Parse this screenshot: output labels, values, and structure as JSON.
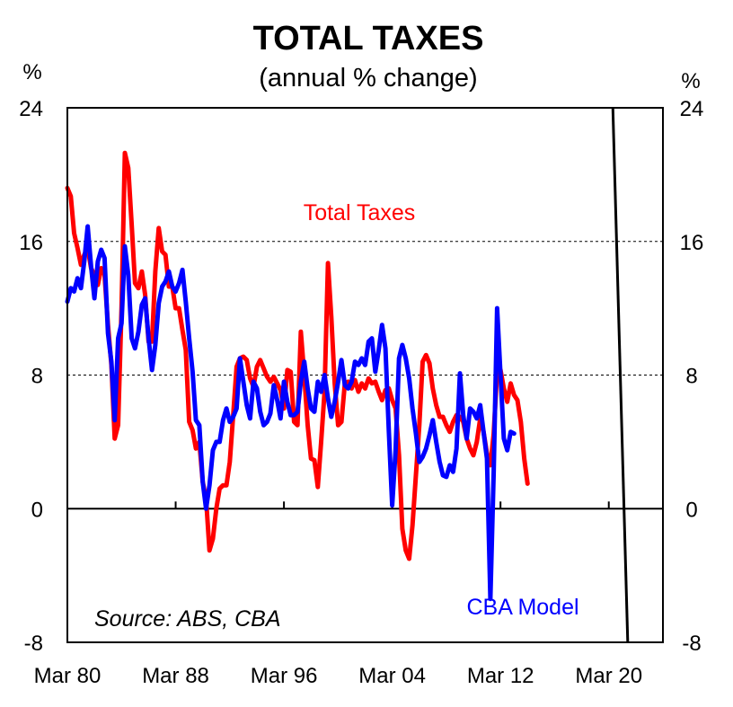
{
  "chart_data": {
    "type": "line",
    "title": "TOTAL TAXES",
    "subtitle": "(annual % change)",
    "y_unit_left": "%",
    "y_unit_right": "%",
    "ylim": [
      -8,
      24
    ],
    "yticks": [
      24,
      16,
      8,
      0,
      -8
    ],
    "xlim": [
      1980.0,
      2024.0
    ],
    "xticks": [
      {
        "label": "Mar 80",
        "x": 1980.0
      },
      {
        "label": "Mar 88",
        "x": 1988.0
      },
      {
        "label": "Mar 96",
        "x": 1996.0
      },
      {
        "label": "Mar 04",
        "x": 2004.0
      },
      {
        "label": "Mar 12",
        "x": 2012.0
      },
      {
        "label": "Mar 20",
        "x": 2020.0
      }
    ],
    "gridlines": [
      16,
      8
    ],
    "annotations": {
      "total_taxes_label": "Total Taxes",
      "cba_label": "CBA Model",
      "source": "Source: ABS, CBA"
    },
    "colors": {
      "total_taxes": "#ff0000",
      "cba_model": "#0000ff",
      "vertical_line": "#000000"
    },
    "vertical_line": {
      "x": [
        2020.3,
        2021.4
      ],
      "y": [
        24,
        -8
      ]
    },
    "series": [
      {
        "name": "Total Taxes",
        "color": "#ff0000",
        "points": [
          [
            1980.0,
            19.2
          ],
          [
            1980.25,
            18.7
          ],
          [
            1980.5,
            16.5
          ],
          [
            1980.75,
            15.6
          ],
          [
            1981.0,
            14.6
          ],
          [
            1981.25,
            15.2
          ],
          [
            1981.5,
            15.6
          ],
          [
            1981.75,
            14.4
          ],
          [
            1982.0,
            14.0
          ],
          [
            1982.25,
            13.4
          ],
          [
            1982.5,
            14.4
          ],
          [
            1982.75,
            14.0
          ],
          [
            1983.0,
            11.0
          ],
          [
            1983.25,
            8.6
          ],
          [
            1983.5,
            4.2
          ],
          [
            1983.75,
            5.0
          ],
          [
            1984.0,
            12.0
          ],
          [
            1984.25,
            21.3
          ],
          [
            1984.5,
            20.4
          ],
          [
            1984.75,
            17.0
          ],
          [
            1985.0,
            13.5
          ],
          [
            1985.25,
            13.2
          ],
          [
            1985.5,
            14.2
          ],
          [
            1985.75,
            12.8
          ],
          [
            1986.0,
            10.0
          ],
          [
            1986.25,
            10.0
          ],
          [
            1986.5,
            14.2
          ],
          [
            1986.75,
            16.8
          ],
          [
            1987.0,
            15.4
          ],
          [
            1987.25,
            15.2
          ],
          [
            1987.5,
            13.3
          ],
          [
            1987.75,
            13.3
          ],
          [
            1988.0,
            12.0
          ],
          [
            1988.25,
            12.0
          ],
          [
            1988.5,
            10.7
          ],
          [
            1988.75,
            9.5
          ],
          [
            1989.0,
            5.2
          ],
          [
            1989.25,
            4.7
          ],
          [
            1989.5,
            3.6
          ],
          [
            1989.75,
            4.0
          ],
          [
            1990.0,
            1.6
          ],
          [
            1990.25,
            0.6
          ],
          [
            1990.5,
            -2.5
          ],
          [
            1990.75,
            -1.8
          ],
          [
            1991.0,
            0.0
          ],
          [
            1991.25,
            1.2
          ],
          [
            1991.5,
            1.4
          ],
          [
            1991.75,
            1.4
          ],
          [
            1992.0,
            2.8
          ],
          [
            1992.25,
            5.6
          ],
          [
            1992.5,
            8.5
          ],
          [
            1992.75,
            9.0
          ],
          [
            1993.0,
            9.1
          ],
          [
            1993.25,
            8.9
          ],
          [
            1993.5,
            7.8
          ],
          [
            1993.75,
            7.3
          ],
          [
            1994.0,
            8.5
          ],
          [
            1994.25,
            8.9
          ],
          [
            1994.5,
            8.4
          ],
          [
            1994.75,
            7.9
          ],
          [
            1995.0,
            7.6
          ],
          [
            1995.25,
            7.9
          ],
          [
            1995.5,
            7.5
          ],
          [
            1995.75,
            7.1
          ],
          [
            1996.0,
            6.0
          ],
          [
            1996.25,
            8.3
          ],
          [
            1996.5,
            8.2
          ],
          [
            1996.75,
            5.2
          ],
          [
            1997.0,
            5.0
          ],
          [
            1997.25,
            10.6
          ],
          [
            1997.5,
            8.0
          ],
          [
            1997.75,
            5.0
          ],
          [
            1998.0,
            3.0
          ],
          [
            1998.25,
            2.9
          ],
          [
            1998.5,
            1.3
          ],
          [
            1998.75,
            4.0
          ],
          [
            1999.0,
            7.0
          ],
          [
            1999.25,
            14.7
          ],
          [
            1999.5,
            11.5
          ],
          [
            1999.75,
            7.5
          ],
          [
            2000.0,
            5.0
          ],
          [
            2000.25,
            5.2
          ],
          [
            2000.5,
            7.5
          ],
          [
            2000.75,
            7.6
          ],
          [
            2001.0,
            7.2
          ],
          [
            2001.25,
            7.7
          ],
          [
            2001.5,
            7.0
          ],
          [
            2001.75,
            7.5
          ],
          [
            2002.0,
            7.2
          ],
          [
            2002.25,
            7.8
          ],
          [
            2002.5,
            7.5
          ],
          [
            2002.75,
            7.6
          ],
          [
            2003.0,
            7.0
          ],
          [
            2003.25,
            6.5
          ],
          [
            2003.5,
            7.1
          ],
          [
            2003.75,
            7.2
          ],
          [
            2004.0,
            6.5
          ],
          [
            2004.25,
            6.0
          ],
          [
            2004.5,
            3.2
          ],
          [
            2004.75,
            -1.2
          ],
          [
            2005.0,
            -2.5
          ],
          [
            2005.25,
            -3.0
          ],
          [
            2005.5,
            -1.0
          ],
          [
            2005.75,
            2.0
          ],
          [
            2006.0,
            5.0
          ],
          [
            2006.25,
            8.8
          ],
          [
            2006.5,
            9.2
          ],
          [
            2006.75,
            8.7
          ],
          [
            2007.0,
            7.2
          ],
          [
            2007.25,
            6.2
          ],
          [
            2007.5,
            5.5
          ],
          [
            2007.75,
            5.5
          ],
          [
            2008.0,
            5.0
          ],
          [
            2008.25,
            4.6
          ],
          [
            2008.5,
            5.2
          ],
          [
            2008.75,
            5.6
          ],
          [
            2009.0,
            5.5
          ],
          [
            2009.25,
            5.2
          ],
          [
            2009.5,
            4.2
          ],
          [
            2009.75,
            3.6
          ],
          [
            2010.0,
            3.2
          ],
          [
            2010.25,
            4.0
          ],
          [
            2010.5,
            5.4
          ],
          [
            2010.75,
            4.6
          ],
          [
            2011.0,
            3.3
          ],
          [
            2011.25,
            2.6
          ],
          [
            2011.5,
            4.5
          ],
          [
            2011.75,
            8.2
          ],
          [
            2012.0,
            8.3
          ],
          [
            2012.25,
            7.2
          ],
          [
            2012.5,
            6.4
          ],
          [
            2012.75,
            7.5
          ],
          [
            2013.0,
            6.8
          ],
          [
            2013.25,
            6.5
          ],
          [
            2013.5,
            5.2
          ],
          [
            2013.75,
            3.0
          ],
          [
            2014.0,
            1.5
          ]
        ]
      },
      {
        "name": "CBA Model",
        "color": "#0000ff",
        "points": [
          [
            1980.0,
            12.4
          ],
          [
            1980.25,
            13.2
          ],
          [
            1980.5,
            13.0
          ],
          [
            1980.75,
            13.8
          ],
          [
            1981.0,
            13.2
          ],
          [
            1981.25,
            14.8
          ],
          [
            1981.5,
            16.9
          ],
          [
            1981.75,
            14.5
          ],
          [
            1982.0,
            12.6
          ],
          [
            1982.25,
            14.8
          ],
          [
            1982.5,
            15.5
          ],
          [
            1982.75,
            15.0
          ],
          [
            1983.0,
            10.5
          ],
          [
            1983.25,
            8.8
          ],
          [
            1983.5,
            5.3
          ],
          [
            1983.75,
            10.2
          ],
          [
            1984.0,
            11.1
          ],
          [
            1984.25,
            15.7
          ],
          [
            1984.5,
            14.0
          ],
          [
            1984.75,
            10.2
          ],
          [
            1985.0,
            9.6
          ],
          [
            1985.25,
            10.6
          ],
          [
            1985.5,
            12.2
          ],
          [
            1985.75,
            12.6
          ],
          [
            1986.0,
            10.2
          ],
          [
            1986.25,
            8.3
          ],
          [
            1986.5,
            9.8
          ],
          [
            1986.75,
            12.3
          ],
          [
            1987.0,
            13.3
          ],
          [
            1987.25,
            13.6
          ],
          [
            1987.5,
            14.2
          ],
          [
            1987.75,
            13.3
          ],
          [
            1988.0,
            13.0
          ],
          [
            1988.25,
            13.5
          ],
          [
            1988.5,
            14.3
          ],
          [
            1988.75,
            12.4
          ],
          [
            1989.0,
            10.2
          ],
          [
            1989.25,
            8.2
          ],
          [
            1989.5,
            5.3
          ],
          [
            1989.75,
            5.0
          ],
          [
            1990.0,
            1.6
          ],
          [
            1990.25,
            0.0
          ],
          [
            1990.5,
            1.4
          ],
          [
            1990.75,
            3.5
          ],
          [
            1991.0,
            4.0
          ],
          [
            1991.25,
            4.0
          ],
          [
            1991.5,
            5.3
          ],
          [
            1991.75,
            6.0
          ],
          [
            1992.0,
            5.2
          ],
          [
            1992.25,
            5.5
          ],
          [
            1992.5,
            6.0
          ],
          [
            1992.75,
            9.0
          ],
          [
            1993.0,
            7.6
          ],
          [
            1993.25,
            6.2
          ],
          [
            1993.5,
            5.4
          ],
          [
            1993.75,
            7.6
          ],
          [
            1994.0,
            7.2
          ],
          [
            1994.25,
            5.8
          ],
          [
            1994.5,
            5.0
          ],
          [
            1994.75,
            5.2
          ],
          [
            1995.0,
            5.7
          ],
          [
            1995.25,
            7.4
          ],
          [
            1995.5,
            6.5
          ],
          [
            1995.75,
            5.4
          ],
          [
            1996.0,
            7.6
          ],
          [
            1996.25,
            6.4
          ],
          [
            1996.5,
            5.6
          ],
          [
            1996.75,
            5.6
          ],
          [
            1997.0,
            5.8
          ],
          [
            1997.25,
            7.6
          ],
          [
            1997.5,
            8.8
          ],
          [
            1997.75,
            7.2
          ],
          [
            1998.0,
            6.0
          ],
          [
            1998.25,
            5.8
          ],
          [
            1998.5,
            7.6
          ],
          [
            1998.75,
            7.0
          ],
          [
            1999.0,
            8.0
          ],
          [
            1999.25,
            6.6
          ],
          [
            1999.5,
            5.5
          ],
          [
            1999.75,
            6.4
          ],
          [
            2000.0,
            7.6
          ],
          [
            2000.25,
            8.9
          ],
          [
            2000.5,
            7.4
          ],
          [
            2000.75,
            7.2
          ],
          [
            2001.0,
            7.6
          ],
          [
            2001.25,
            8.8
          ],
          [
            2001.5,
            8.6
          ],
          [
            2001.75,
            9.0
          ],
          [
            2002.0,
            8.6
          ],
          [
            2002.25,
            10.0
          ],
          [
            2002.5,
            10.2
          ],
          [
            2002.75,
            8.2
          ],
          [
            2003.0,
            9.5
          ],
          [
            2003.25,
            11.0
          ],
          [
            2003.5,
            9.6
          ],
          [
            2003.75,
            4.6
          ],
          [
            2004.0,
            0.2
          ],
          [
            2004.25,
            3.5
          ],
          [
            2004.5,
            9.0
          ],
          [
            2004.75,
            9.8
          ],
          [
            2005.0,
            9.0
          ],
          [
            2005.25,
            7.8
          ],
          [
            2005.5,
            6.0
          ],
          [
            2005.75,
            4.5
          ],
          [
            2006.0,
            2.8
          ],
          [
            2006.25,
            3.1
          ],
          [
            2006.5,
            3.6
          ],
          [
            2006.75,
            4.4
          ],
          [
            2007.0,
            5.3
          ],
          [
            2007.25,
            4.0
          ],
          [
            2007.5,
            2.8
          ],
          [
            2007.75,
            2.0
          ],
          [
            2008.0,
            1.9
          ],
          [
            2008.25,
            2.6
          ],
          [
            2008.5,
            2.2
          ],
          [
            2008.75,
            3.6
          ],
          [
            2009.0,
            8.1
          ],
          [
            2009.25,
            5.6
          ],
          [
            2009.5,
            4.2
          ],
          [
            2009.75,
            6.0
          ],
          [
            2010.0,
            5.8
          ],
          [
            2010.25,
            5.4
          ],
          [
            2010.5,
            6.2
          ],
          [
            2010.75,
            4.6
          ],
          [
            2011.0,
            3.0
          ],
          [
            2011.25,
            -5.4
          ],
          [
            2011.5,
            2.2
          ],
          [
            2011.75,
            12.0
          ],
          [
            2012.0,
            8.0
          ],
          [
            2012.25,
            4.2
          ],
          [
            2012.5,
            3.5
          ],
          [
            2012.75,
            4.6
          ],
          [
            2013.0,
            4.5
          ]
        ]
      }
    ]
  }
}
